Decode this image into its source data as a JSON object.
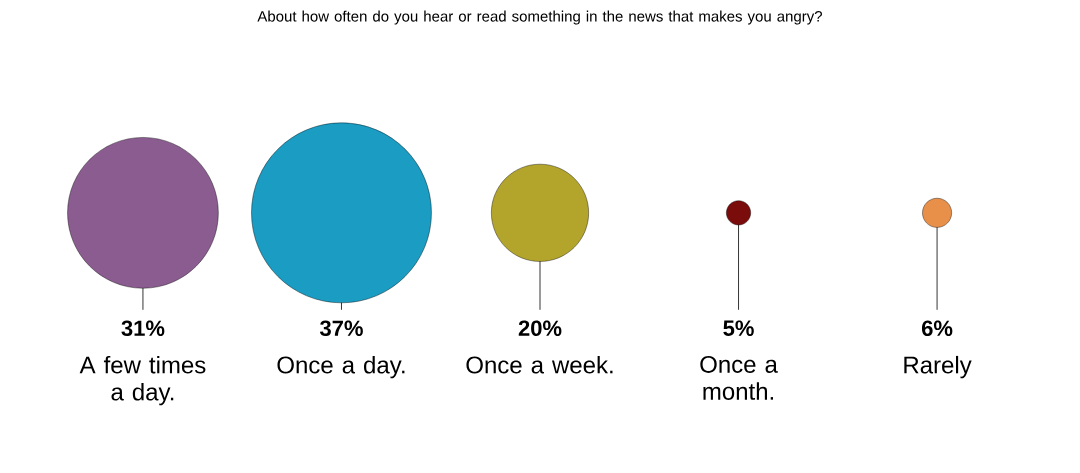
{
  "chart_data": {
    "type": "other",
    "title": "About how often do you hear or read something in the news that makes you angry?",
    "categories": [
      "A few times a day.",
      "Once a day.",
      "Once a week.",
      "Once a month.",
      "Rarely"
    ],
    "values": [
      31,
      37,
      20,
      5,
      6
    ],
    "value_labels": [
      "31%",
      "37%",
      "20%",
      "5%",
      "6%"
    ],
    "colors": [
      "#8b5c90",
      "#1b9cc2",
      "#b3a52c",
      "#7a0c0c",
      "#e8904a"
    ]
  }
}
